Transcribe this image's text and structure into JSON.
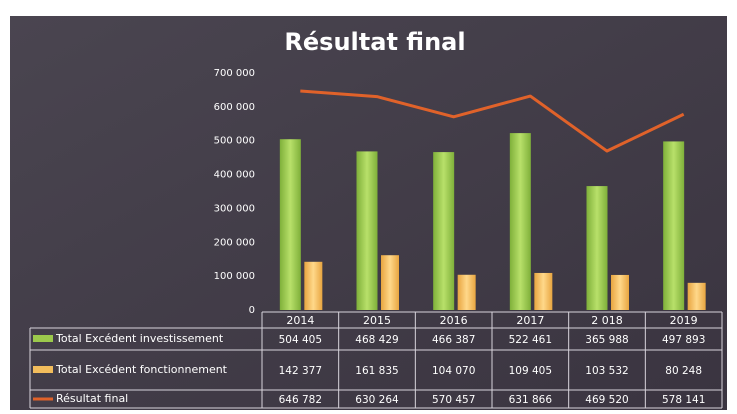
{
  "chart_data": {
    "type": "bar-line-table",
    "title": "Résultat final",
    "categories": [
      "2014",
      "2015",
      "2016",
      "2017",
      "2 018",
      "2019"
    ],
    "series": [
      {
        "name": "Total Excédent investissement",
        "kind": "bar",
        "color": "#9cc94c",
        "values": [
          504405,
          468429,
          466387,
          522461,
          365988,
          497893
        ],
        "value_labels": [
          "504 405",
          "468 429",
          "466 387",
          "522 461",
          "365 988",
          "497 893"
        ]
      },
      {
        "name": "Total Excédent fonctionnement",
        "kind": "bar",
        "color": "#f2bd5c",
        "values": [
          142377,
          161835,
          104070,
          109405,
          103532,
          80248
        ],
        "value_labels": [
          "142 377",
          "161 835",
          "104 070",
          "109 405",
          "103 532",
          "80 248"
        ]
      },
      {
        "name": "Résultat final",
        "kind": "line",
        "color": "#e0622a",
        "values": [
          646782,
          630264,
          570457,
          631866,
          469520,
          578141
        ],
        "value_labels": [
          "646 782",
          "630 264",
          "570 457",
          "631 866",
          "469 520",
          "578 141"
        ]
      }
    ],
    "ylim": [
      0,
      700000
    ],
    "yticks": [
      0,
      {
        "value": 100000,
        "label": "100 000"
      },
      {
        "value": 200000,
        "label": "200 000"
      },
      {
        "value": 300000,
        "label": "300 000"
      },
      {
        "value": 400000,
        "label": "400 000"
      },
      {
        "value": 500000,
        "label": "500 000"
      },
      {
        "value": 600000,
        "label": "600 000"
      },
      {
        "value": 700000,
        "label": "700 000"
      }
    ]
  }
}
